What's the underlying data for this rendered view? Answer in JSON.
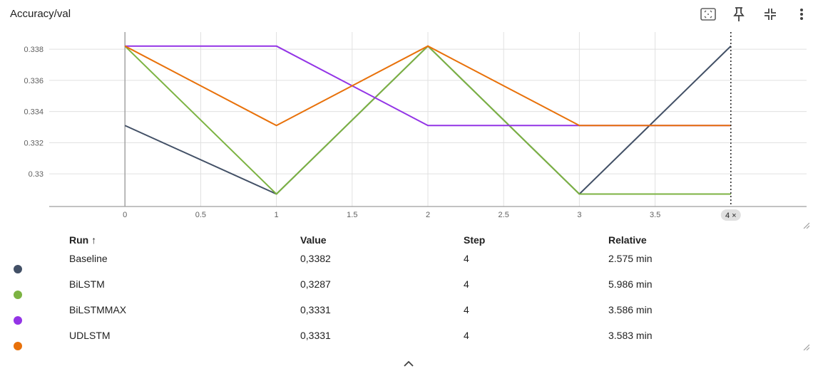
{
  "title": "Accuracy/val",
  "toolbar": {
    "icons": [
      "fit-to-data-icon",
      "pin-icon",
      "collapse-icon",
      "more-vert-icon"
    ]
  },
  "chart_data": {
    "type": "line",
    "x": [
      0,
      1,
      2,
      3,
      4
    ],
    "xlim": [
      -0.5,
      4.5
    ],
    "ylim": [
      0.3279,
      0.3391
    ],
    "x_ticks": [
      "0",
      "0.5",
      "1",
      "1.5",
      "2",
      "2.5",
      "3",
      "3.5"
    ],
    "y_ticks": [
      "0.338",
      "0.336",
      "0.334",
      "0.332",
      "0.33"
    ],
    "cursor_step_label": "4",
    "grid": true,
    "series": [
      {
        "name": "Baseline",
        "color": "#425066",
        "values": [
          0.3331,
          0.3287,
          0.3382,
          0.3287,
          0.3382
        ]
      },
      {
        "name": "BiLSTM",
        "color": "#7cb342",
        "values": [
          0.3382,
          0.3287,
          0.3382,
          0.3287,
          0.3287
        ]
      },
      {
        "name": "BiLSTMMAX",
        "color": "#9334e6",
        "values": [
          0.3382,
          0.3382,
          0.3331,
          0.3331,
          0.3331
        ]
      },
      {
        "name": "UDLSTM",
        "color": "#e8710a",
        "values": [
          0.3382,
          0.3331,
          0.3382,
          0.3331,
          0.3331
        ]
      }
    ]
  },
  "table": {
    "headers": {
      "run": "Run ↑",
      "value": "Value",
      "step": "Step",
      "relative": "Relative"
    },
    "rows": [
      {
        "run": "Baseline",
        "value": "0,3382",
        "step": "4",
        "relative": "2.575 min",
        "color": "#425066"
      },
      {
        "run": "BiLSTM",
        "value": "0,3287",
        "step": "4",
        "relative": "5.986 min",
        "color": "#7cb342"
      },
      {
        "run": "BiLSTMMAX",
        "value": "0,3331",
        "step": "4",
        "relative": "3.586 min",
        "color": "#9334e6"
      },
      {
        "run": "UDLSTM",
        "value": "0,3331",
        "step": "4",
        "relative": "3.583 min",
        "color": "#e8710a"
      }
    ]
  }
}
